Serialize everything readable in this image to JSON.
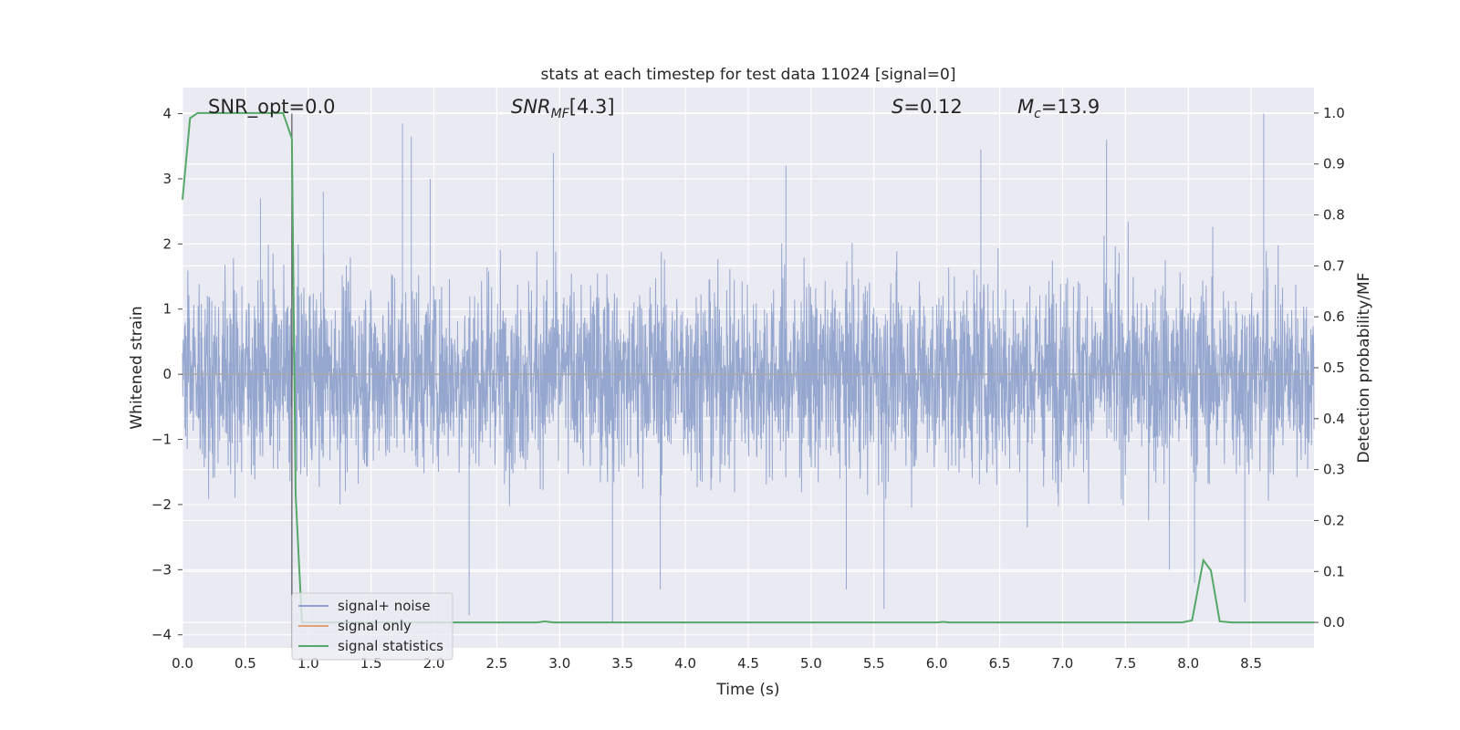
{
  "chart_data": {
    "type": "line",
    "title": "stats at each timestep for test data 11024 [signal=0]",
    "xlabel": "Time (s)",
    "ylabel": "Whitened strain",
    "y2label": "Detection probability/MF",
    "xlim": [
      0.0,
      9.0
    ],
    "ylim": [
      -4.2,
      4.4
    ],
    "y2lim": [
      -0.05,
      1.05
    ],
    "xticks": [
      "0.0",
      "0.5",
      "1.0",
      "1.5",
      "2.0",
      "2.5",
      "3.0",
      "3.5",
      "4.0",
      "4.5",
      "5.0",
      "5.5",
      "6.0",
      "6.5",
      "7.0",
      "7.5",
      "8.0",
      "8.5"
    ],
    "yticks": [
      "−4",
      "−3",
      "−2",
      "−1",
      "0",
      "1",
      "2",
      "3",
      "4"
    ],
    "y2ticks": [
      "0.0",
      "0.1",
      "0.2",
      "0.3",
      "0.4",
      "0.5",
      "0.6",
      "0.7",
      "0.8",
      "0.9",
      "1.0"
    ],
    "grid": true,
    "legend_position": "lower-left",
    "annotations": [
      {
        "id": "snr_opt",
        "text": "SNR_opt=0.0",
        "x": 0.2,
        "y": 4.1
      },
      {
        "id": "snr_mf",
        "text": "[4.3]",
        "x": 2.6,
        "y": 4.1
      },
      {
        "id": "s",
        "text": "=0.12",
        "x": 5.6,
        "y": 4.1
      },
      {
        "id": "mc",
        "text": "=13.9",
        "x": 6.6,
        "y": 4.1
      }
    ],
    "series": [
      {
        "name": "signal+ noise",
        "axis": "left",
        "color": "#8da0cb",
        "description_points": "dense whitened strain noise, roughly within -2.5 to 2.5 with spikes up to about 4 and down to about -3.8",
        "spikes": [
          {
            "x": 0.62,
            "y": 2.7
          },
          {
            "x": 1.12,
            "y": 2.8
          },
          {
            "x": 1.75,
            "y": 3.85
          },
          {
            "x": 1.82,
            "y": 3.65
          },
          {
            "x": 1.97,
            "y": 3.0
          },
          {
            "x": 2.28,
            "y": -3.7
          },
          {
            "x": 2.95,
            "y": 3.4
          },
          {
            "x": 3.42,
            "y": -3.8
          },
          {
            "x": 3.8,
            "y": -3.3
          },
          {
            "x": 4.8,
            "y": 3.2
          },
          {
            "x": 5.28,
            "y": -3.3
          },
          {
            "x": 5.58,
            "y": -3.6
          },
          {
            "x": 6.35,
            "y": 3.45
          },
          {
            "x": 7.35,
            "y": 3.6
          },
          {
            "x": 7.85,
            "y": -3.0
          },
          {
            "x": 8.05,
            "y": -3.2
          },
          {
            "x": 8.45,
            "y": -3.5
          },
          {
            "x": 8.6,
            "y": 4.0
          }
        ]
      },
      {
        "name": "signal only",
        "axis": "left",
        "color": "#e5a27a",
        "x": [
          0.0,
          9.0
        ],
        "y": [
          0.0,
          0.0
        ]
      },
      {
        "name": "signal statistics",
        "axis": "right",
        "color": "#55a868",
        "x": [
          0.0,
          0.06,
          0.12,
          0.2,
          0.3,
          0.5,
          0.7,
          0.8,
          0.87,
          0.9,
          0.95,
          1.0,
          1.5,
          2.0,
          2.5,
          2.82,
          2.88,
          2.95,
          3.0,
          4.0,
          5.0,
          6.0,
          6.05,
          6.1,
          7.0,
          7.5,
          7.95,
          8.03,
          8.12,
          8.18,
          8.25,
          8.35,
          9.0
        ],
        "y": [
          0.83,
          0.99,
          1.0,
          1.0,
          1.0,
          1.0,
          1.0,
          1.0,
          0.95,
          0.25,
          0.0,
          0.0,
          0.0,
          0.0,
          0.0,
          0.0,
          0.002,
          0.0,
          0.0,
          0.0,
          0.0,
          0.0,
          0.001,
          0.0,
          0.0,
          0.0,
          0.0,
          0.004,
          0.122,
          0.102,
          0.002,
          0.0,
          0.0
        ]
      }
    ]
  }
}
